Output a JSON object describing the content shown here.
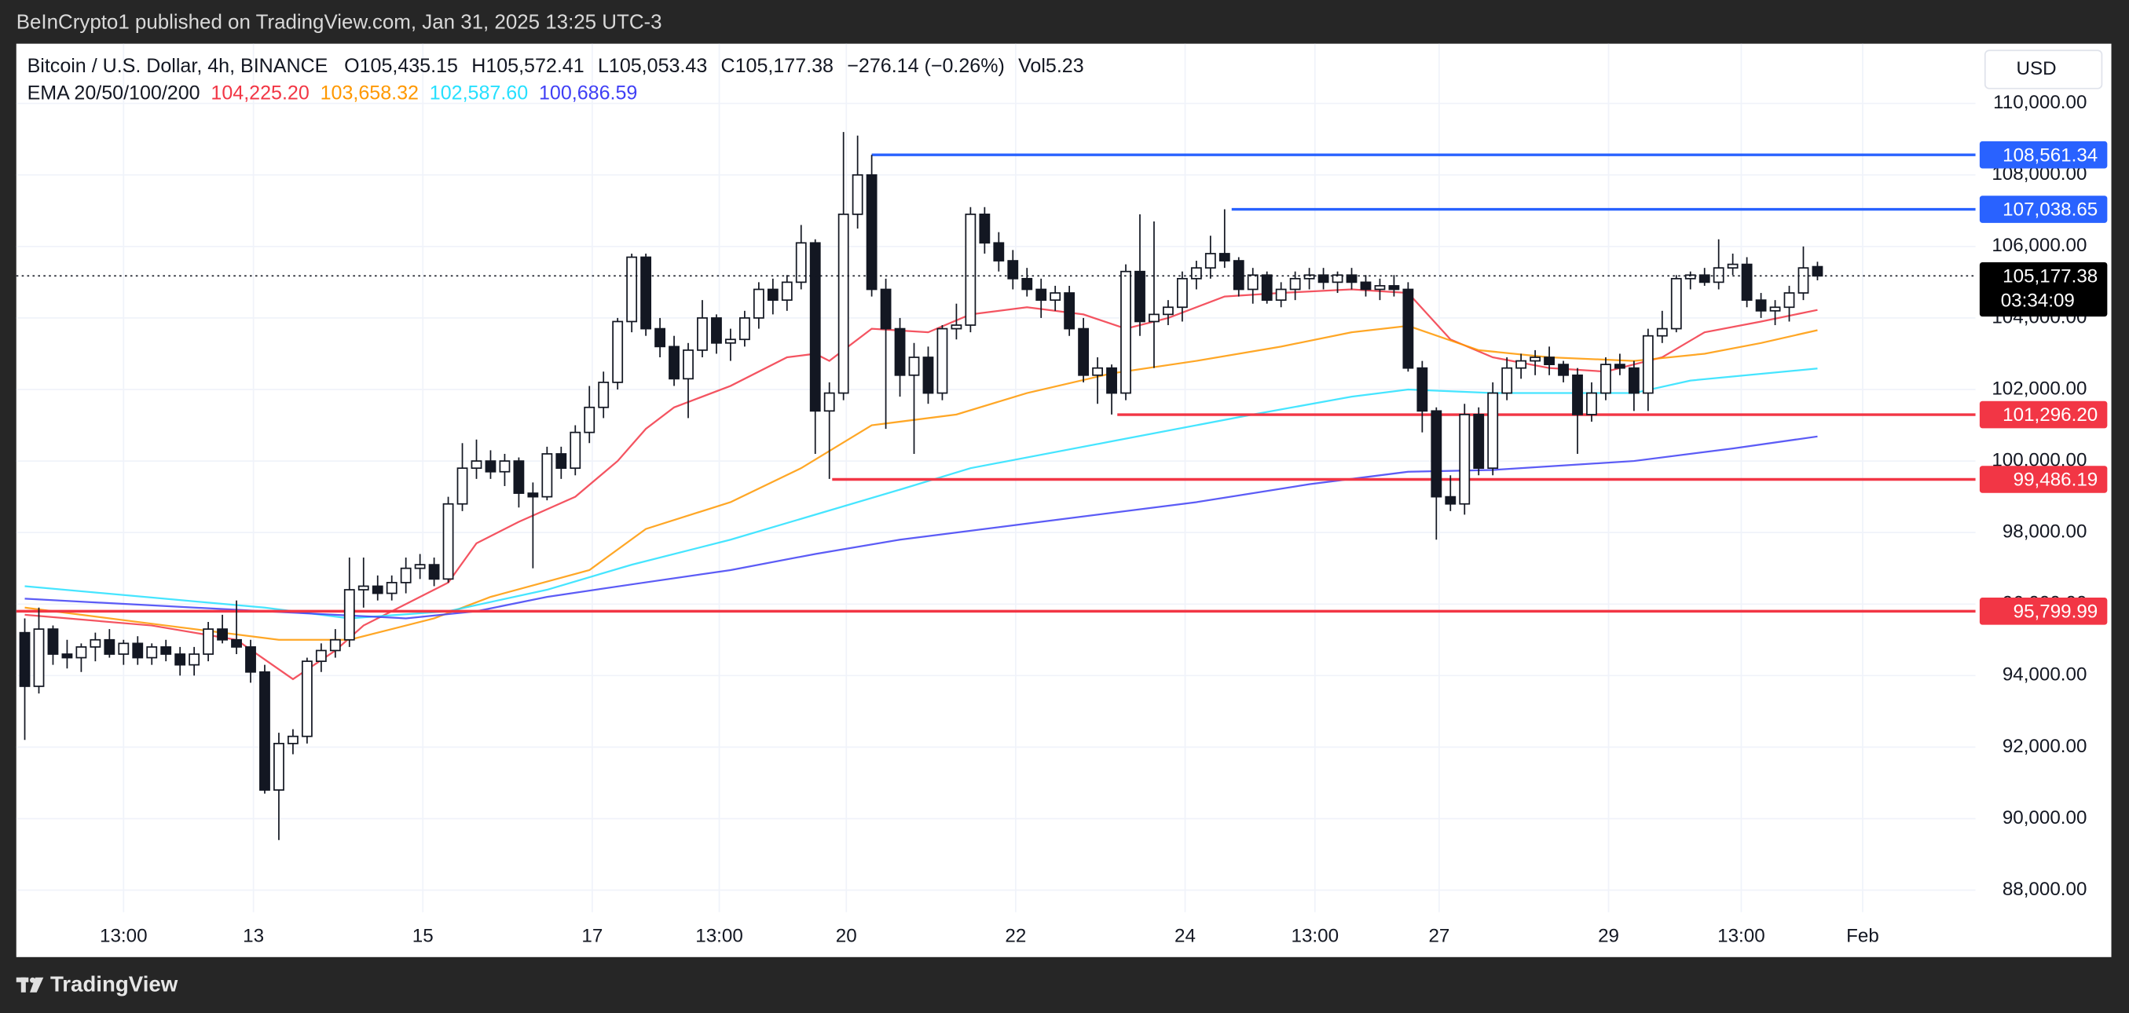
{
  "chart_data": {
    "type": "candlestick",
    "source_note": "BeInCrypto1 published on TradingView.com, Jan 31, 2025 13:25 UTC-3",
    "footer_brand": "TradingView",
    "currency": "USD",
    "title": "Bitcoin / U.S. Dollar, 4h, BINANCE",
    "ohlc_header": [
      {
        "key": "O",
        "value": "105,435.15"
      },
      {
        "key": "H",
        "value": "105,572.41"
      },
      {
        "key": "L",
        "value": "105,053.43"
      },
      {
        "key": "C",
        "value": "105,177.38"
      }
    ],
    "change": "−276.14 (−0.26%)",
    "volume": {
      "key": "Vol",
      "value": "5.23"
    },
    "indicator": "EMA 20/50/100/200",
    "xlim": [
      -0.6,
      138.2
    ],
    "ylim": [
      87380,
      111670
    ],
    "xticks": [
      {
        "value": 7,
        "label": "13:00"
      },
      {
        "value": 16.2,
        "label": "13"
      },
      {
        "value": 28.2,
        "label": "15"
      },
      {
        "value": 40.2,
        "label": "17"
      },
      {
        "value": 49.2,
        "label": "13:00"
      },
      {
        "value": 58.2,
        "label": "20"
      },
      {
        "value": 70.2,
        "label": "22"
      },
      {
        "value": 82.2,
        "label": "24"
      },
      {
        "value": 91.4,
        "label": "13:00"
      },
      {
        "value": 100.2,
        "label": "27"
      },
      {
        "value": 112.2,
        "label": "29"
      },
      {
        "value": 121.6,
        "label": "13:00"
      },
      {
        "value": 130.2,
        "label": "Feb"
      }
    ],
    "yticks": [
      {
        "value": 88000,
        "label": "88,000.00"
      },
      {
        "value": 90000,
        "label": "90,000.00"
      },
      {
        "value": 92000,
        "label": "92,000.00"
      },
      {
        "value": 94000,
        "label": "94,000.00"
      },
      {
        "value": 96000,
        "label": "96,000.00"
      },
      {
        "value": 98000,
        "label": "98,000.00"
      },
      {
        "value": 100000,
        "label": "100,000.00"
      },
      {
        "value": 102000,
        "label": "102,000.00"
      },
      {
        "value": 104000,
        "label": "104,000.00"
      },
      {
        "value": 106000,
        "label": "106,000.00"
      },
      {
        "value": 108000,
        "label": "108,000.00"
      },
      {
        "value": 110000,
        "label": "110,000.00"
      }
    ],
    "grid": true,
    "up_color": "#ffffff",
    "down_color": "#131722",
    "candles": {
      "open": [
        95200,
        93700,
        95300,
        94600,
        94500,
        94800,
        95000,
        94600,
        94900,
        94500,
        94800,
        94600,
        94300,
        94600,
        95300,
        95000,
        94800,
        94100,
        90800,
        92100,
        92300,
        94400,
        94700,
        95000,
        96400,
        96500,
        96300,
        96600,
        97000,
        97100,
        96700,
        98800,
        99800,
        100000,
        99700,
        100000,
        99100,
        99000,
        100200,
        99800,
        100800,
        101500,
        102200,
        103900,
        105700,
        103700,
        103200,
        102300,
        103100,
        104000,
        103300,
        103400,
        104000,
        104800,
        104500,
        105000,
        106100,
        101400,
        101900,
        106900,
        108000,
        104800,
        103700,
        102400,
        102900,
        101900,
        103700,
        103800,
        106900,
        106100,
        105600,
        105100,
        104800,
        104500,
        104700,
        103700,
        102400,
        102600,
        101900,
        105300,
        103900,
        104100,
        104300,
        105100,
        105400,
        105800,
        105600,
        104800,
        105200,
        104500,
        104800,
        105100,
        105200,
        105000,
        105200,
        105000,
        104800,
        104900,
        104800,
        102600,
        101400,
        99000,
        98800,
        101300,
        99800,
        101900,
        102600,
        102800,
        102900,
        102700,
        102400,
        101300,
        101900,
        102700,
        102600,
        101900,
        103500,
        103700,
        105100,
        105200,
        105000,
        105400,
        105500,
        104500,
        104200,
        104300,
        104700,
        105435.15
      ],
      "high": [
        95600,
        95900,
        95400,
        95000,
        94900,
        95200,
        95300,
        95000,
        95100,
        94900,
        95000,
        94800,
        94800,
        95500,
        95700,
        96100,
        95000,
        94300,
        92400,
        92500,
        94500,
        94900,
        95300,
        97300,
        97300,
        96800,
        96800,
        97300,
        97400,
        97300,
        99000,
        100500,
        100600,
        100300,
        100200,
        100100,
        99400,
        100400,
        100400,
        101000,
        102100,
        102500,
        104000,
        105800,
        105800,
        104000,
        103500,
        103300,
        104500,
        104100,
        103700,
        104200,
        105000,
        105100,
        105200,
        106600,
        106200,
        102200,
        109200,
        109100,
        108560,
        105100,
        104000,
        103300,
        103200,
        103800,
        104400,
        107100,
        107100,
        106400,
        105900,
        105400,
        105100,
        104900,
        104900,
        104000,
        102900,
        102700,
        105500,
        106900,
        106700,
        104500,
        105300,
        105600,
        106300,
        107040,
        105700,
        105400,
        105300,
        105000,
        105300,
        105400,
        105400,
        105300,
        105400,
        105200,
        105100,
        105200,
        105000,
        102800,
        101500,
        99600,
        101600,
        101500,
        102200,
        102900,
        103000,
        103100,
        103200,
        102800,
        102600,
        102200,
        102900,
        103000,
        102800,
        103700,
        104200,
        105200,
        105300,
        105400,
        106200,
        105800,
        105700,
        104700,
        104500,
        104900,
        106000,
        105572.41
      ],
      "low": [
        92200,
        93500,
        94300,
        94200,
        94100,
        94400,
        94500,
        94300,
        94300,
        94300,
        94400,
        94000,
        94000,
        94400,
        94900,
        94600,
        93800,
        90700,
        89400,
        91800,
        92100,
        94100,
        94500,
        94800,
        95900,
        96100,
        96100,
        96300,
        96700,
        96500,
        96600,
        98600,
        99500,
        99500,
        99300,
        98700,
        97000,
        98900,
        99500,
        99600,
        100500,
        101200,
        102000,
        103600,
        103500,
        102900,
        102100,
        101200,
        102900,
        103000,
        102800,
        103200,
        103700,
        104100,
        104200,
        104800,
        100200,
        99500,
        101700,
        106500,
        104600,
        100900,
        101800,
        100200,
        101600,
        101700,
        103400,
        103600,
        105800,
        105300,
        104800,
        104600,
        104000,
        104200,
        103500,
        102200,
        101600,
        101300,
        101700,
        103500,
        102600,
        103800,
        103900,
        104800,
        105100,
        105400,
        104600,
        104400,
        104400,
        104300,
        104500,
        104800,
        104800,
        104700,
        104800,
        104600,
        104500,
        104600,
        102500,
        100800,
        97800,
        98600,
        98500,
        99600,
        99600,
        101700,
        102300,
        102400,
        102400,
        102200,
        100200,
        101100,
        101700,
        102400,
        101400,
        101400,
        103300,
        103600,
        104800,
        104900,
        104800,
        105200,
        104300,
        104000,
        103800,
        103900,
        104500,
        105053.43
      ],
      "close": [
        93700,
        95300,
        94600,
        94500,
        94800,
        95000,
        94600,
        94900,
        94500,
        94800,
        94600,
        94300,
        94600,
        95300,
        95000,
        94800,
        94100,
        90800,
        92100,
        92300,
        94400,
        94700,
        95000,
        96400,
        96500,
        96300,
        96600,
        97000,
        97100,
        96700,
        98800,
        99800,
        100000,
        99700,
        100000,
        99100,
        99000,
        100200,
        99800,
        100800,
        101500,
        102200,
        103900,
        105700,
        103700,
        103200,
        102300,
        103100,
        104000,
        103300,
        103400,
        104000,
        104800,
        104500,
        105000,
        106100,
        101400,
        101900,
        106900,
        108000,
        104800,
        103700,
        102400,
        102900,
        101900,
        103700,
        103800,
        106900,
        106100,
        105600,
        105100,
        104800,
        104500,
        104700,
        103700,
        102400,
        102600,
        101900,
        105300,
        103900,
        104100,
        104300,
        105100,
        105400,
        105800,
        105600,
        104800,
        105200,
        104500,
        104800,
        105100,
        105200,
        105000,
        105200,
        105000,
        104800,
        104900,
        104800,
        102600,
        101400,
        99000,
        98800,
        101300,
        99800,
        101900,
        102600,
        102800,
        102900,
        102700,
        102400,
        101300,
        101900,
        102700,
        102600,
        101900,
        103500,
        103700,
        105100,
        105200,
        105000,
        105400,
        105500,
        104500,
        104200,
        104300,
        104700,
        105400,
        105177.38
      ]
    },
    "series": [
      {
        "color": "#f23645",
        "legend_value": "104,225.20",
        "x": [
          0,
          9,
          15,
          19,
          22,
          24,
          27,
          30,
          32,
          35,
          39,
          42,
          44,
          46,
          50,
          54,
          56,
          57,
          60,
          64,
          67,
          71,
          75,
          78,
          81,
          85,
          89,
          94,
          98,
          101,
          104,
          108,
          112,
          116,
          119,
          123,
          127
        ],
        "values": [
          95700,
          95400,
          95000,
          93900,
          94700,
          95400,
          96000,
          96600,
          97700,
          98300,
          99000,
          100000,
          100900,
          101500,
          102100,
          102900,
          103000,
          102800,
          103700,
          103600,
          104100,
          104300,
          104100,
          103700,
          104000,
          104600,
          104700,
          104800,
          104700,
          103400,
          102900,
          102600,
          102500,
          102900,
          103600,
          103900,
          104225.2
        ]
      },
      {
        "color": "#ff9800",
        "legend_value": "103,658.32",
        "x": [
          0,
          10,
          18,
          23,
          29,
          33,
          40,
          44,
          50,
          55,
          60,
          66,
          71,
          77,
          83,
          89,
          94,
          98,
          103,
          108,
          114,
          119,
          123,
          127
        ],
        "values": [
          95900,
          95400,
          95000,
          95000,
          95600,
          96200,
          96950,
          98100,
          98850,
          99800,
          101000,
          101300,
          101900,
          102450,
          102800,
          103200,
          103600,
          103780,
          103100,
          102900,
          102800,
          103000,
          103300,
          103658.32
        ]
      },
      {
        "color": "#26e0ff",
        "legend_value": "102,587.60",
        "x": [
          0,
          17,
          23,
          30,
          37,
          43,
          50,
          56,
          62,
          67,
          77,
          87,
          94,
          98,
          104,
          109,
          114,
          118,
          127
        ],
        "values": [
          96500,
          95900,
          95600,
          95800,
          96400,
          97100,
          97800,
          98500,
          99200,
          99800,
          100550,
          101300,
          101800,
          102000,
          101900,
          101900,
          101900,
          102250,
          102587.6
        ]
      },
      {
        "color": "#3f3ff5",
        "legend_value": "100,686.59",
        "x": [
          0,
          17,
          27,
          32,
          37,
          43,
          50,
          56,
          62,
          71,
          83,
          91,
          98,
          104,
          114,
          121,
          127
        ],
        "values": [
          96150,
          95800,
          95600,
          95800,
          96200,
          96550,
          96950,
          97400,
          97800,
          98250,
          98850,
          99350,
          99700,
          99750,
          100000,
          100350,
          100686.59
        ]
      }
    ],
    "levels": [
      {
        "value": 108561.34,
        "label": "108,561.34",
        "color": "#2962ff",
        "from": 60
      },
      {
        "value": 107038.65,
        "label": "107,038.65",
        "color": "#2962ff",
        "from": 85.5
      },
      {
        "value": 101296.2,
        "label": "101,296.20",
        "color": "#f23645",
        "from": 77.4
      },
      {
        "value": 99486.19,
        "label": "99,486.19",
        "color": "#f23645",
        "from": 57.2
      },
      {
        "value": 95799.99,
        "label": "95,799.99",
        "color": "#f23645",
        "from": -0.6
      }
    ],
    "last_price": {
      "value": 105177.38,
      "label": "105,177.38",
      "countdown": "03:34:09"
    }
  }
}
